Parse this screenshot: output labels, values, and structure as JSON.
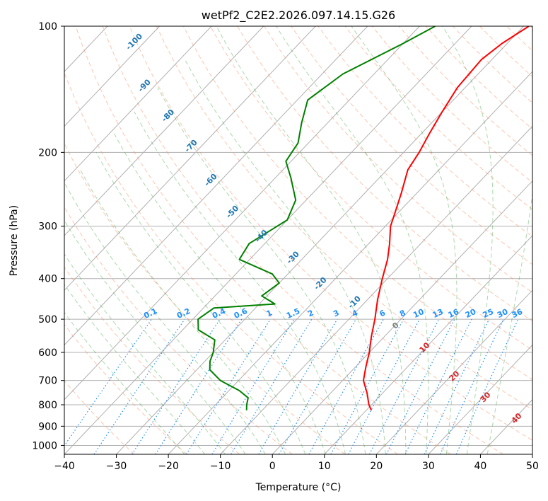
{
  "chart_data": {
    "type": "line",
    "title": "wetPf2_C2E2.2026.097.14.15.G26",
    "xlabel": "Temperature (°C)",
    "ylabel": "Pressure (hPa)",
    "xlim": [
      -40,
      50
    ],
    "ylim": [
      1050,
      100
    ],
    "y_scale": "log",
    "grid": true,
    "x_ticks": [
      "−40",
      "−30",
      "−20",
      "−10",
      "0",
      "10",
      "20",
      "30",
      "40",
      "50"
    ],
    "y_ticks": [
      "100",
      "200",
      "300",
      "400",
      "500",
      "600",
      "700",
      "800",
      "900",
      "1000"
    ],
    "series": [
      {
        "color": "#ff0000",
        "values": [
          [
            100,
            -29
          ],
          [
            110,
            -31
          ],
          [
            120,
            -32
          ],
          [
            140,
            -31.5
          ],
          [
            160,
            -30
          ],
          [
            180,
            -28.5
          ],
          [
            200,
            -27
          ],
          [
            220,
            -26
          ],
          [
            250,
            -23
          ],
          [
            280,
            -20.5
          ],
          [
            300,
            -19
          ],
          [
            330,
            -16
          ],
          [
            360,
            -13.5
          ],
          [
            400,
            -11
          ],
          [
            450,
            -8
          ],
          [
            500,
            -5
          ],
          [
            550,
            -2.5
          ],
          [
            600,
            0
          ],
          [
            650,
            2
          ],
          [
            700,
            4
          ],
          [
            750,
            7
          ],
          [
            800,
            9.5
          ],
          [
            825,
            11
          ]
        ]
      },
      {
        "color": "#008000",
        "values": [
          [
            100,
            -47
          ],
          [
            110,
            -50
          ],
          [
            130,
            -56
          ],
          [
            150,
            -58
          ],
          [
            170,
            -55
          ],
          [
            190,
            -52
          ],
          [
            210,
            -51
          ],
          [
            230,
            -47
          ],
          [
            260,
            -42
          ],
          [
            290,
            -40
          ],
          [
            330,
            -43
          ],
          [
            360,
            -42
          ],
          [
            390,
            -33
          ],
          [
            410,
            -30
          ],
          [
            440,
            -31
          ],
          [
            460,
            -27
          ],
          [
            470,
            -38
          ],
          [
            500,
            -39
          ],
          [
            530,
            -37
          ],
          [
            560,
            -32
          ],
          [
            600,
            -30
          ],
          [
            630,
            -29
          ],
          [
            660,
            -27.5
          ],
          [
            700,
            -23.5
          ],
          [
            740,
            -18
          ],
          [
            770,
            -15
          ],
          [
            800,
            -14
          ],
          [
            825,
            -13
          ]
        ]
      }
    ],
    "dry_adiabats_color": "#ff7f50",
    "moist_adiabats_color": "#2ca02c",
    "mixing_ratio_color": "#1e90ff",
    "isotherm_labels": [
      "-100",
      "-90",
      "-80",
      "-70",
      "-60",
      "-50",
      "-40",
      "-30",
      "-20",
      "-10"
    ],
    "isotherm_label_color": "#1f77b4",
    "mixing_ratio_labels": [
      "0.1",
      "0.2",
      "0.4",
      "0.6",
      "1",
      "1.5",
      "2",
      "3",
      "4",
      "6",
      "8",
      "10",
      "13",
      "16",
      "20",
      "25",
      "30",
      "36"
    ],
    "extra_labels": [
      {
        "text": "0",
        "color": "#808080"
      },
      {
        "text": "10",
        "color": "#d62728"
      },
      {
        "text": "20",
        "color": "#d62728"
      },
      {
        "text": "30",
        "color": "#d62728"
      },
      {
        "text": "40",
        "color": "#d62728"
      }
    ]
  }
}
